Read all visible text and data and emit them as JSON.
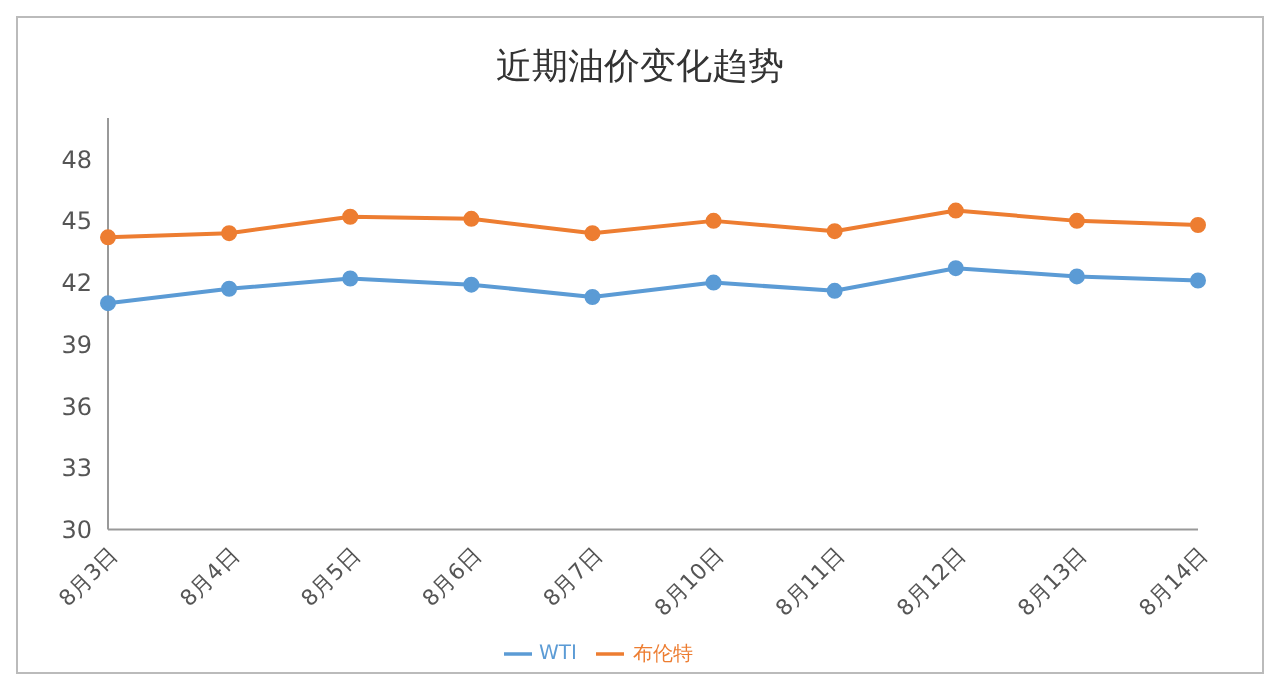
{
  "chart_data": {
    "type": "line",
    "title": "近期油价变化趋势",
    "categories": [
      "8月3日",
      "8月4日",
      "8月5日",
      "8月6日",
      "8月7日",
      "8月10日",
      "8月11日",
      "8月12日",
      "8月13日",
      "8月14日"
    ],
    "series": [
      {
        "name": "WTI",
        "color": "#5b9bd5",
        "values": [
          41.0,
          41.7,
          42.2,
          41.9,
          41.3,
          42.0,
          41.6,
          42.7,
          42.3,
          42.1
        ]
      },
      {
        "name": "布伦特",
        "color": "#ed7d31",
        "values": [
          44.2,
          44.4,
          45.2,
          45.1,
          44.4,
          45.0,
          44.5,
          45.5,
          45.0,
          44.8
        ]
      }
    ],
    "ylim": [
      30,
      50
    ],
    "yticks": [
      30,
      33,
      36,
      39,
      42,
      45,
      48
    ],
    "grid": false,
    "legend": "bottom",
    "marker": "circle",
    "line_style": "solid"
  }
}
